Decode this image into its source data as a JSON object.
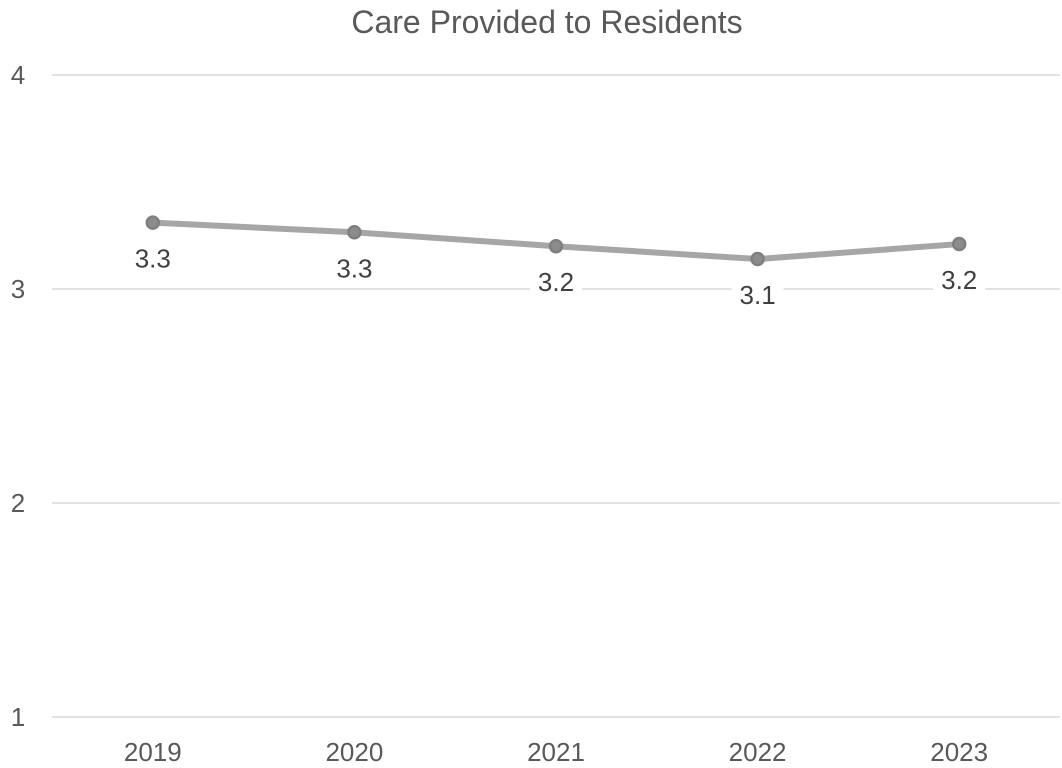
{
  "chart_data": {
    "type": "line",
    "title": "Care Provided to Residents",
    "categories": [
      "2019",
      "2020",
      "2021",
      "2022",
      "2023"
    ],
    "series": [
      {
        "values": [
          3.31,
          3.265,
          3.2,
          3.14,
          3.21
        ],
        "data_labels": [
          "3.3",
          "3.3",
          "3.2",
          "3.1",
          "3.2"
        ]
      }
    ],
    "ylim": [
      1,
      4
    ],
    "yticks": [
      "1",
      "2",
      "3",
      "4"
    ],
    "grid": true,
    "legend": "none",
    "colors": {
      "line": "#a6a6a6",
      "marker_fill": "#8c8c8c",
      "marker_stroke": "#7f7f7f"
    }
  }
}
